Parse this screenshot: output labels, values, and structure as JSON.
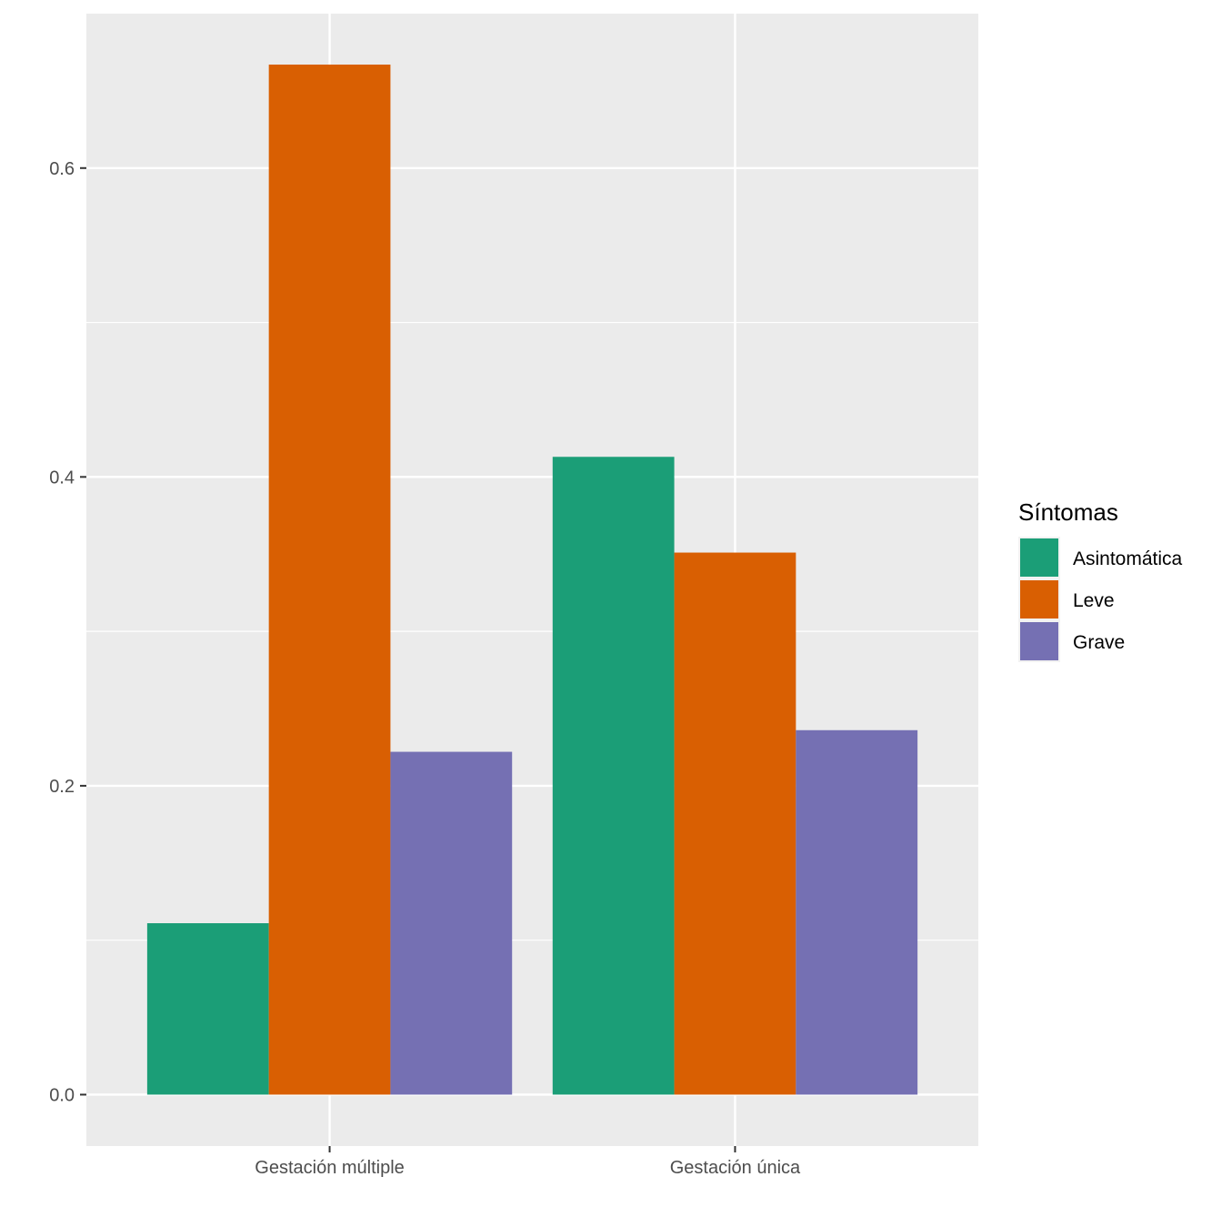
{
  "chart_data": {
    "type": "bar",
    "categories": [
      "Gestación múltiple",
      "Gestación única"
    ],
    "series": [
      {
        "name": "Asintomática",
        "color": "#1B9E77",
        "values": [
          0.111,
          0.413
        ]
      },
      {
        "name": "Leve",
        "color": "#D95F02",
        "values": [
          0.667,
          0.351
        ]
      },
      {
        "name": "Grave",
        "color": "#7570B3",
        "values": [
          0.222,
          0.236
        ]
      }
    ],
    "legend": {
      "title": "Síntomas",
      "position": "right"
    },
    "yticks": [
      "0.0",
      "0.2",
      "0.4",
      "0.6"
    ],
    "ylim": [
      -0.0333,
      0.7
    ],
    "xlabel": "",
    "ylabel": "",
    "grid": true,
    "panel_color": "#EBEBEB",
    "grid_color": "#FFFFFF"
  }
}
